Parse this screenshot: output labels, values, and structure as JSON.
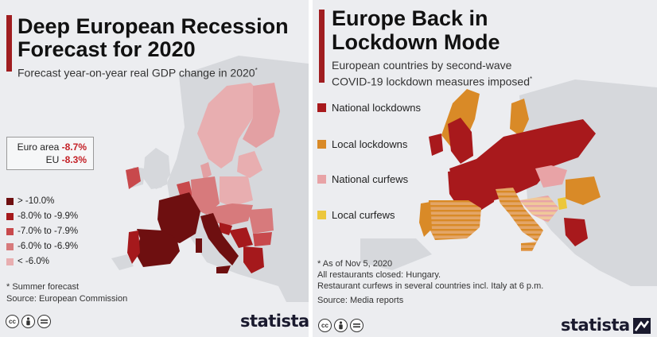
{
  "left": {
    "title_line1": "Deep European Recession",
    "title_line2": "Forecast for 2020",
    "subtitle": "Forecast year-on-year real GDP change in 2020",
    "subtitle_mark": "*",
    "stats": [
      {
        "label": "Euro area",
        "value": "-8.7%"
      },
      {
        "label": "EU",
        "value": "-8.3%"
      }
    ],
    "legend": [
      {
        "label": "> -10.0%",
        "color": "#6e0f10"
      },
      {
        "label": "-8.0% to -9.9%",
        "color": "#a5191c"
      },
      {
        "label": "-7.0% to -7.9%",
        "color": "#c8494c"
      },
      {
        "label": "-6.0% to -6.9%",
        "color": "#d77a7c"
      },
      {
        "label": "< -6.0%",
        "color": "#e8aeb0"
      }
    ],
    "footnote": "* Summer forecast",
    "source": "Source: European Commission",
    "brand": "statista"
  },
  "right": {
    "title_line1": "Europe Back in",
    "title_line2": "Lockdown Mode",
    "subtitle_line1": "European countries by second-wave",
    "subtitle_line2": "COVID-19 lockdown measures imposed",
    "subtitle_mark": "*",
    "legend": [
      {
        "label": "National lockdowns",
        "color": "#a8191c"
      },
      {
        "label": "Local lockdowns",
        "color": "#d98a27"
      },
      {
        "label": "National curfews",
        "color": "#e8a3a6"
      },
      {
        "label": "Local curfews",
        "color": "#ecc73c"
      }
    ],
    "notes": [
      "* As of Nov 5, 2020",
      "All restaurants closed: Hungary.",
      "Restaurant curfews in several countries incl. Italy at 6 p.m.",
      "Source: Media reports"
    ],
    "brand": "statista"
  },
  "license_icons": [
    "cc-icon",
    "person-icon",
    "equals-icon"
  ],
  "colors": {
    "accent": "#a01d20",
    "land": "#d6d8dc",
    "background": "#ecedf0"
  }
}
